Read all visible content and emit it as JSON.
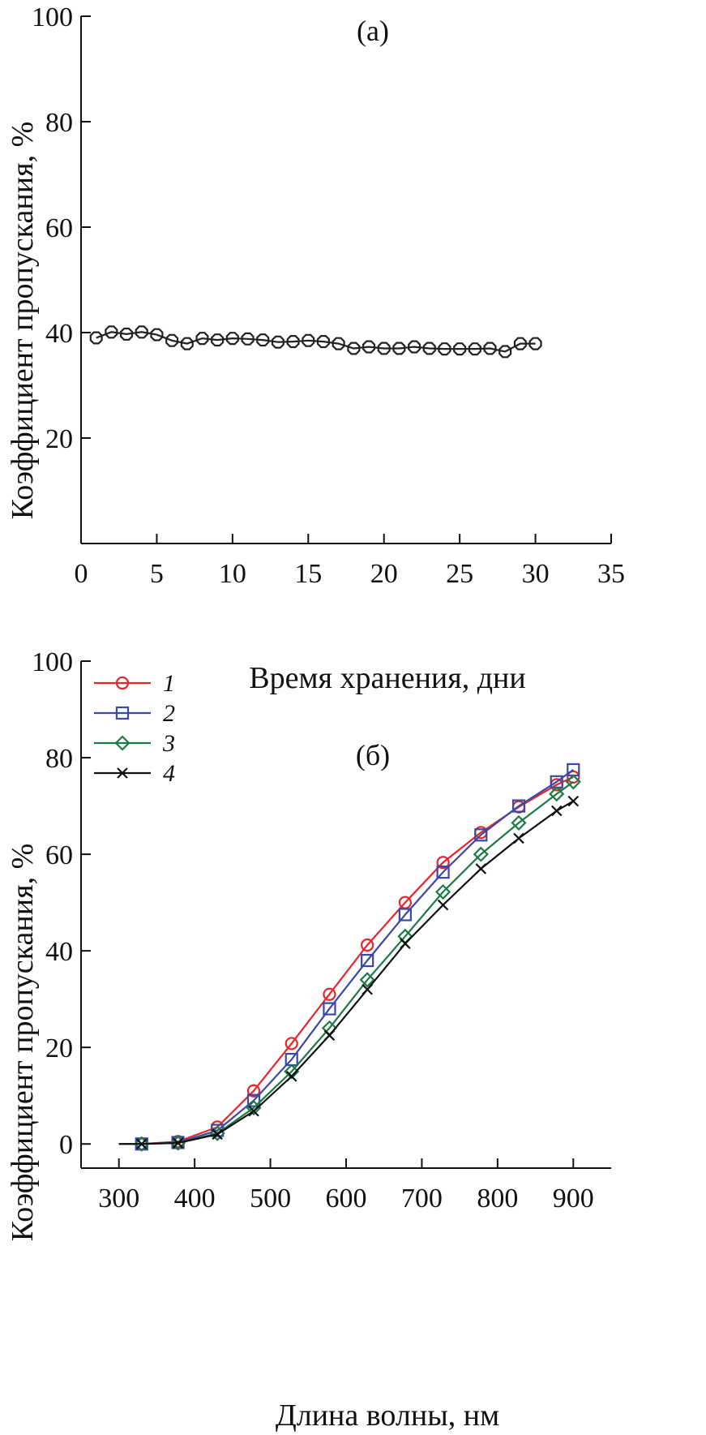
{
  "chart_data": [
    {
      "panel": "(а)",
      "type": "line",
      "xlabel": "Время хранения, дни",
      "ylabel": "Коэффициент пропускания, %",
      "xlim": [
        0,
        35
      ],
      "ylim": [
        0,
        100
      ],
      "xticks": [
        0,
        5,
        10,
        15,
        20,
        25,
        30,
        35
      ],
      "yticks": [
        20,
        40,
        60,
        80,
        100
      ],
      "marker": "octagon-open",
      "color": "#222222",
      "series": [
        {
          "x": [
            1,
            2,
            3,
            4,
            5,
            6,
            7,
            8,
            9,
            10,
            11,
            12,
            13,
            14,
            15,
            16,
            17,
            18,
            19,
            20,
            21,
            22,
            23,
            24,
            25,
            26,
            27,
            28,
            29,
            30
          ],
          "y": [
            39,
            40.1,
            39.7,
            40.1,
            39.6,
            38.5,
            37.9,
            38.9,
            38.6,
            38.9,
            38.8,
            38.6,
            38.2,
            38.3,
            38.5,
            38.3,
            37.9,
            37,
            37.3,
            37,
            37,
            37.3,
            37,
            36.9,
            36.9,
            36.9,
            37,
            36.4,
            37.9,
            37.9
          ]
        }
      ]
    },
    {
      "panel": "(б)",
      "type": "line",
      "xlabel": "Длина волны, нм",
      "ylabel": "Коэффициент пропускания, %",
      "xlim": [
        250,
        950
      ],
      "ylim": [
        -5,
        100
      ],
      "xticks": [
        300,
        400,
        500,
        600,
        700,
        800,
        900
      ],
      "yticks": [
        0,
        20,
        40,
        60,
        80,
        100
      ],
      "legend_position": "top-left",
      "series": [
        {
          "name": "1",
          "color": "#e8242b",
          "marker": "circle-open",
          "x": [
            300,
            330,
            378,
            430,
            478,
            528,
            578,
            628,
            678,
            728,
            778,
            828,
            878,
            900
          ],
          "y": [
            0,
            0,
            0.5,
            3.5,
            11,
            20.8,
            31,
            41.2,
            50,
            58.3,
            64.5,
            69.8,
            74.4,
            76
          ]
        },
        {
          "name": "2",
          "color": "#3a48a8",
          "marker": "square-open",
          "x": [
            300,
            330,
            378,
            430,
            478,
            528,
            578,
            628,
            678,
            728,
            778,
            828,
            878,
            900
          ],
          "y": [
            0,
            0,
            0.3,
            2.8,
            9,
            17.5,
            28,
            38,
            47.5,
            56.3,
            64,
            70,
            75,
            77.5
          ]
        },
        {
          "name": "3",
          "color": "#1d7a45",
          "marker": "diamond-open",
          "x": [
            300,
            330,
            378,
            430,
            478,
            528,
            578,
            628,
            678,
            728,
            778,
            828,
            878,
            900
          ],
          "y": [
            0,
            0,
            0.2,
            2.2,
            7.5,
            15,
            24,
            34,
            43,
            52.2,
            60,
            66.5,
            72.5,
            75
          ]
        },
        {
          "name": "4",
          "color": "#111111",
          "marker": "x",
          "x": [
            300,
            330,
            378,
            430,
            478,
            528,
            578,
            628,
            678,
            728,
            778,
            828,
            878,
            900
          ],
          "y": [
            0,
            0,
            0.2,
            2,
            6.8,
            14,
            22.5,
            32,
            41.5,
            49.5,
            57,
            63.3,
            69,
            71
          ]
        }
      ]
    }
  ]
}
